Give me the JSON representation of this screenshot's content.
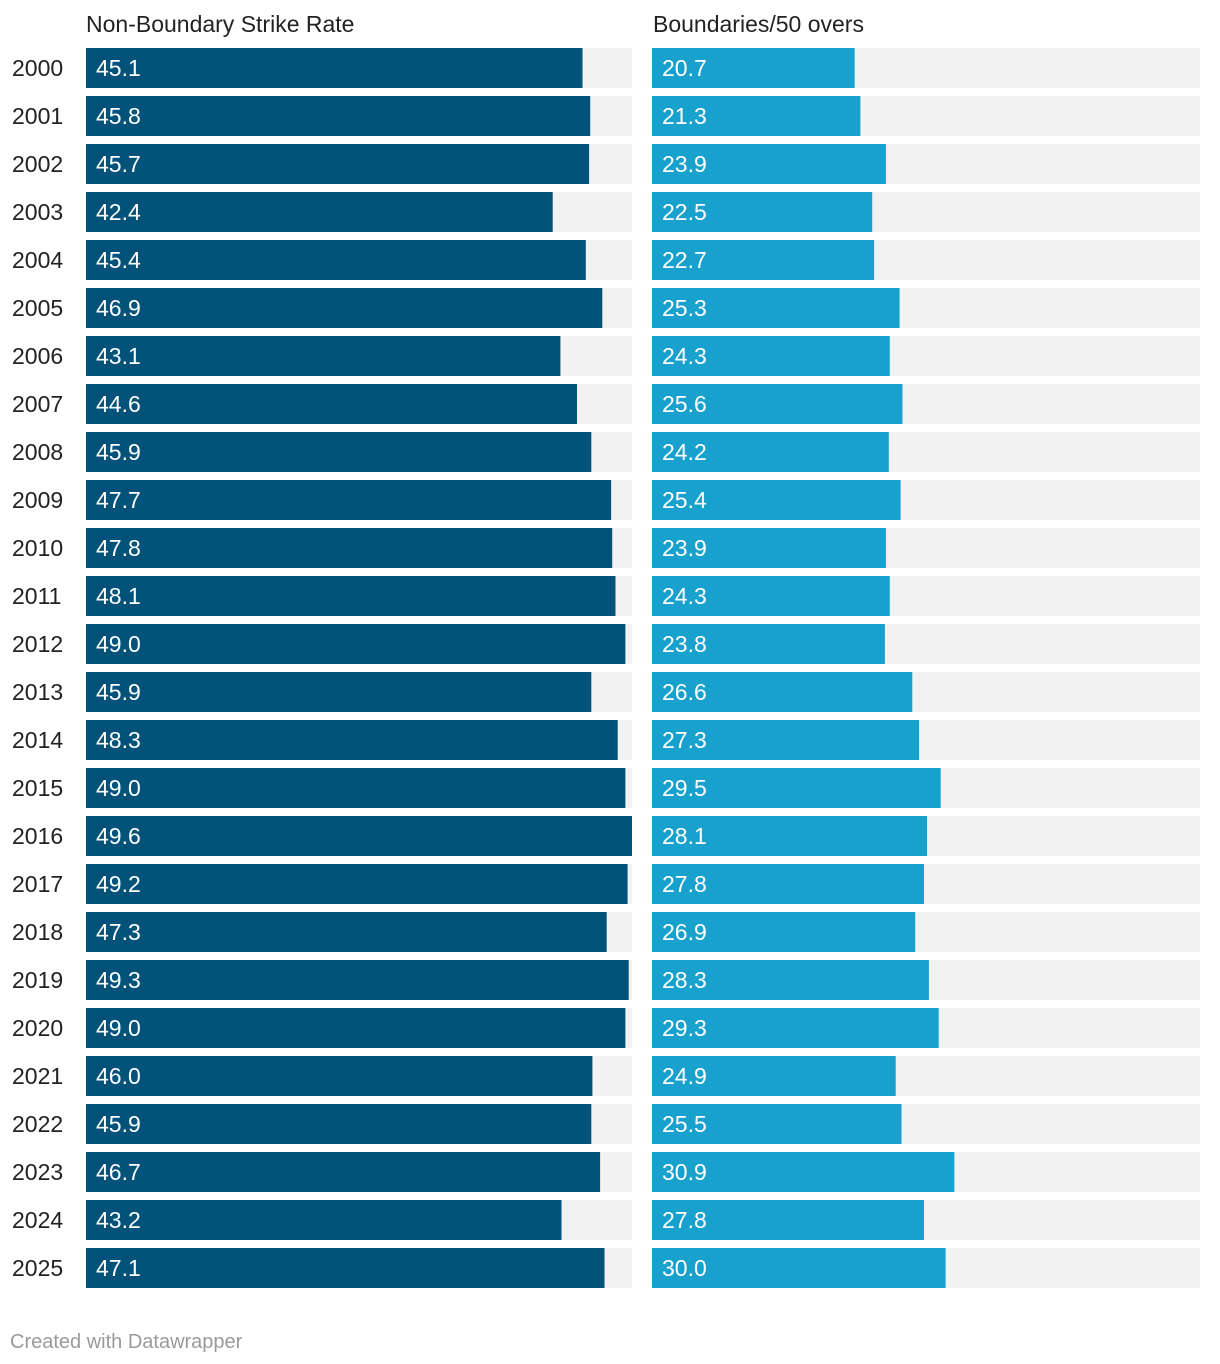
{
  "chart_data": {
    "type": "bar",
    "orientation": "horizontal",
    "categories": [
      "2000",
      "2001",
      "2002",
      "2003",
      "2004",
      "2005",
      "2006",
      "2007",
      "2008",
      "2009",
      "2010",
      "2011",
      "2012",
      "2013",
      "2014",
      "2015",
      "2016",
      "2017",
      "2018",
      "2019",
      "2020",
      "2021",
      "2022",
      "2023",
      "2024",
      "2025"
    ],
    "series": [
      {
        "name": "Non-Boundary Strike Rate",
        "color": "#03527a",
        "max": 49.6,
        "values": [
          45.1,
          45.8,
          45.7,
          42.4,
          45.4,
          46.9,
          43.1,
          44.6,
          45.9,
          47.7,
          47.8,
          48.1,
          49.0,
          45.9,
          48.3,
          49.0,
          49.6,
          49.2,
          47.3,
          49.3,
          49.0,
          46.0,
          45.9,
          46.7,
          43.2,
          47.1
        ],
        "labels": [
          "45.1",
          "45.8",
          "45.7",
          "42.4",
          "45.4",
          "46.9",
          "43.1",
          "44.6",
          "45.9",
          "47.7",
          "47.8",
          "48.1",
          "49.0",
          "45.9",
          "48.3",
          "49.0",
          "49.6",
          "49.2",
          "47.3",
          "49.3",
          "49.0",
          "46.0",
          "45.9",
          "46.7",
          "43.2",
          "47.1"
        ]
      },
      {
        "name": "Boundaries/50 overs",
        "color": "#18a1cd",
        "max": 56.0,
        "values": [
          20.7,
          21.3,
          23.9,
          22.5,
          22.7,
          25.3,
          24.3,
          25.6,
          24.2,
          25.4,
          23.9,
          24.3,
          23.8,
          26.6,
          27.3,
          29.5,
          28.1,
          27.8,
          26.9,
          28.3,
          29.3,
          24.9,
          25.5,
          30.9,
          27.8,
          30.0
        ],
        "labels": [
          "20.7",
          "21.3",
          "23.9",
          "22.5",
          "22.7",
          "25.3",
          "24.3",
          "25.6",
          "24.2",
          "25.4",
          "23.9",
          "24.3",
          "23.8",
          "26.6",
          "27.3",
          "29.5",
          "28.1",
          "27.8",
          "26.9",
          "28.3",
          "29.3",
          "24.9",
          "25.5",
          "30.9",
          "27.8",
          "30.0"
        ]
      }
    ],
    "track_color": "#f2f2f2",
    "legend": "column headers at top"
  },
  "footer": {
    "credit": "Created with Datawrapper"
  }
}
